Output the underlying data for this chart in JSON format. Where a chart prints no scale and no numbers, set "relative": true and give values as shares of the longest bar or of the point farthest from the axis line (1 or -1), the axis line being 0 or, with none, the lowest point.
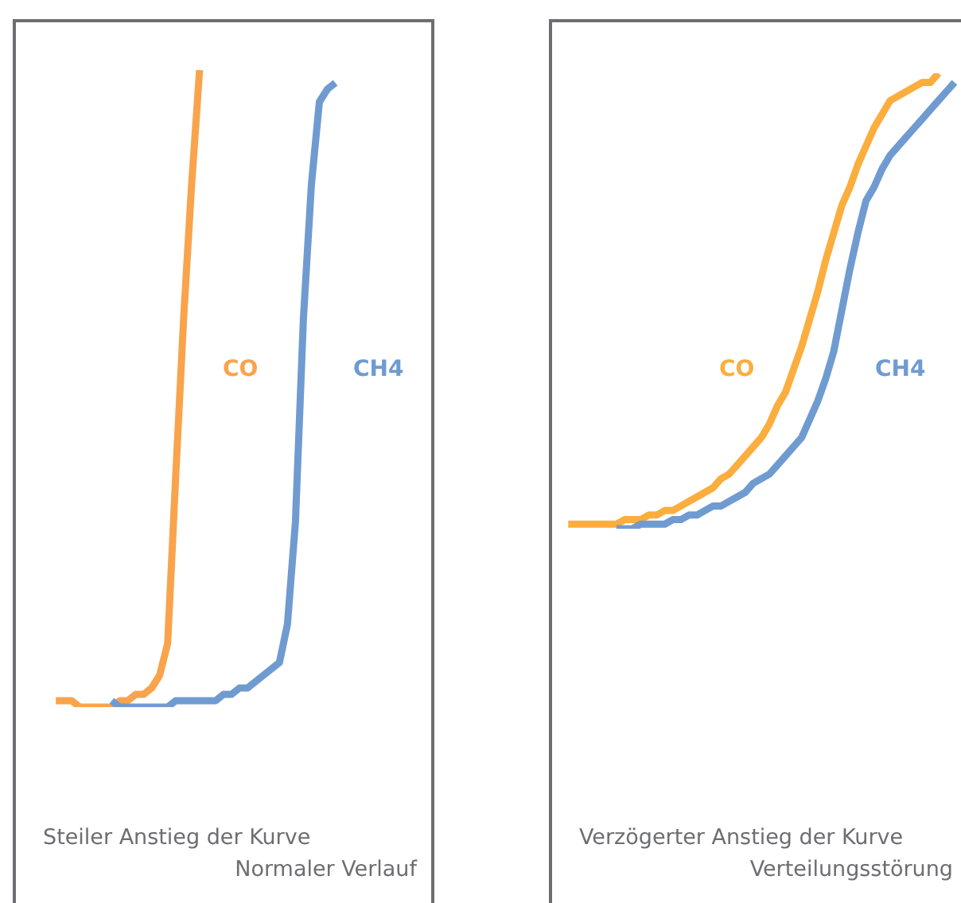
{
  "chart_data": [
    {
      "type": "line",
      "relative": true,
      "annotations": [
        "Steiler Anstieg der Kurve",
        "Normaler Verlauf"
      ],
      "categories": [
        null,
        null,
        null,
        null,
        null,
        null,
        null,
        null,
        null,
        null,
        null,
        null,
        null,
        null,
        null,
        null,
        null,
        null,
        null,
        null,
        null,
        null,
        null,
        null,
        null,
        null,
        null,
        null,
        null,
        null,
        null,
        null,
        null,
        null,
        null,
        null,
        null,
        null,
        null,
        null,
        null,
        null,
        null,
        null,
        null,
        null,
        null,
        null,
        null,
        null,
        null,
        null,
        null
      ],
      "series": [
        {
          "name": "CO",
          "color": "#f9a44c",
          "values": [
            null,
            null,
            null,
            null,
            null,
            0.01,
            0.01,
            0.01,
            0.0,
            0.0,
            0.0,
            0.0,
            0.0,
            0.01,
            0.01,
            0.02,
            0.02,
            0.03,
            0.05,
            0.1,
            0.36,
            0.61,
            0.82,
            1.0,
            null,
            null,
            null,
            null,
            null,
            null,
            null,
            null,
            null,
            null,
            null,
            null,
            null,
            null,
            null,
            null,
            null,
            null,
            null,
            null,
            null,
            null,
            null,
            null,
            null,
            null,
            null,
            null,
            null
          ]
        },
        {
          "name": "CH4",
          "color": "#6f9bd1",
          "values": [
            null,
            null,
            null,
            null,
            null,
            null,
            null,
            null,
            null,
            null,
            null,
            null,
            0.01,
            0.0,
            0.0,
            0.0,
            0.0,
            0.0,
            0.0,
            0.0,
            0.01,
            0.01,
            0.01,
            0.01,
            0.01,
            0.01,
            0.02,
            0.02,
            0.03,
            0.03,
            0.04,
            0.05,
            0.06,
            0.07,
            0.13,
            0.29,
            0.61,
            0.82,
            0.95,
            0.97,
            0.98,
            null,
            null,
            null,
            null,
            null,
            null,
            null,
            null,
            null,
            null,
            null,
            null
          ]
        }
      ]
    },
    {
      "type": "line",
      "relative": true,
      "annotations": [
        "Verzögerter Anstieg der Kurve",
        "Verteilungsstörung"
      ],
      "categories": [
        null,
        null,
        null,
        null,
        null,
        null,
        null,
        null,
        null,
        null,
        null,
        null,
        null,
        null,
        null,
        null,
        null,
        null,
        null,
        null,
        null,
        null,
        null,
        null,
        null,
        null,
        null,
        null,
        null,
        null,
        null,
        null,
        null,
        null,
        null,
        null,
        null,
        null,
        null,
        null,
        null,
        null,
        null,
        null,
        null,
        null,
        null,
        null,
        null,
        null,
        null,
        null
      ],
      "series": [
        {
          "name": "CO",
          "color": "#fbae3e",
          "values": [
            null,
            null,
            0.01,
            0.01,
            0.01,
            0.01,
            0.01,
            0.01,
            0.01,
            0.02,
            0.02,
            0.02,
            0.03,
            0.03,
            0.04,
            0.04,
            0.05,
            0.06,
            0.07,
            0.08,
            0.09,
            0.11,
            0.12,
            0.14,
            0.16,
            0.18,
            0.2,
            0.23,
            0.27,
            0.3,
            0.35,
            0.4,
            0.46,
            0.52,
            0.59,
            0.65,
            0.71,
            0.75,
            0.8,
            0.84,
            0.88,
            0.91,
            0.94,
            0.95,
            0.96,
            0.97,
            0.98,
            0.98,
            1.0,
            null,
            null,
            null
          ]
        },
        {
          "name": "CH4",
          "color": "#6f9bd1",
          "values": [
            null,
            null,
            null,
            null,
            null,
            null,
            null,
            null,
            0.0,
            0.0,
            0.0,
            0.01,
            0.01,
            0.01,
            0.01,
            0.02,
            0.02,
            0.03,
            0.03,
            0.04,
            0.05,
            0.05,
            0.06,
            0.07,
            0.08,
            0.1,
            0.11,
            0.12,
            0.14,
            0.16,
            0.18,
            0.2,
            0.24,
            0.28,
            0.33,
            0.39,
            0.48,
            0.57,
            0.65,
            0.72,
            0.75,
            0.79,
            0.82,
            0.84,
            0.86,
            0.88,
            0.9,
            0.92,
            0.94,
            0.96,
            0.98,
            null
          ]
        }
      ]
    }
  ]
}
